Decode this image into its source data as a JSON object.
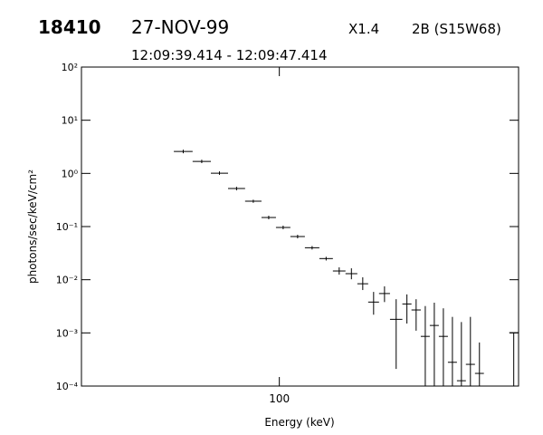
{
  "chart_data": {
    "type": "errorbar",
    "title": "18410",
    "date": "27-NOV-99",
    "class": "X1.4",
    "location": "2B (S15W68)",
    "subtitle": "12:09:39.414 - 12:09:47.414",
    "xlabel": "Energy (keV)",
    "ylabel": "photons/sec/keV/cm²",
    "xscale": "log",
    "yscale": "log",
    "xlim": [
      20,
      700
    ],
    "ylim": [
      0.0001,
      100
    ],
    "xticks": [
      100
    ],
    "yticks": [
      {
        "value": 0.0001,
        "label": "10⁻⁴"
      },
      {
        "value": 0.001,
        "label": "10⁻³"
      },
      {
        "value": 0.01,
        "label": "10⁻²"
      },
      {
        "value": 0.1,
        "label": "10⁻¹"
      },
      {
        "value": 1,
        "label": "10⁰"
      },
      {
        "value": 10,
        "label": "10¹"
      },
      {
        "value": 100,
        "label": "10²"
      }
    ],
    "color": "#000000",
    "x_low": [
      42.4,
      49.4,
      57.3,
      65.9,
      75.7,
      86.5,
      97.3,
      109.4,
      123.1,
      138.5,
      154.6,
      171.3,
      188.6,
      206,
      225,
      246,
      272,
      293,
      316,
      340,
      366,
      394,
      424,
      456,
      491,
      649
    ],
    "x_high": [
      49.4,
      57.3,
      65.9,
      75.7,
      86.5,
      97.3,
      109.4,
      123.1,
      138.5,
      154.6,
      171.3,
      188.6,
      206,
      225,
      246,
      272,
      293,
      316,
      340,
      366,
      394,
      424,
      456,
      491,
      528,
      698
    ],
    "values": [
      2.58,
      1.68,
      1.01,
      0.52,
      0.3,
      0.148,
      0.096,
      0.065,
      0.04,
      0.025,
      0.0146,
      0.013,
      0.0084,
      0.0038,
      0.0055,
      0.0018,
      0.0035,
      0.0027,
      0.00086,
      0.00138,
      0.00086,
      0.00028,
      0.000126,
      0.000256,
      0.000173,
      0.00101
    ],
    "y_low": [
      2.39,
      1.56,
      0.94,
      0.48,
      0.28,
      0.137,
      0.089,
      0.06,
      0.037,
      0.023,
      0.0125,
      0.0102,
      0.0064,
      0.0022,
      0.0038,
      0.00021,
      0.0015,
      0.0011,
      0.0001,
      0.0001,
      0.0001,
      0.0001,
      0.0001,
      0.0001,
      0.0001,
      0.0001
    ],
    "y_high": [
      2.79,
      1.81,
      1.09,
      0.56,
      0.32,
      0.16,
      0.104,
      0.07,
      0.043,
      0.027,
      0.0171,
      0.0164,
      0.0111,
      0.0059,
      0.0075,
      0.0043,
      0.0053,
      0.0043,
      0.0032,
      0.0037,
      0.0029,
      0.002,
      0.0016,
      0.002,
      0.00066,
      0.00101
    ]
  }
}
